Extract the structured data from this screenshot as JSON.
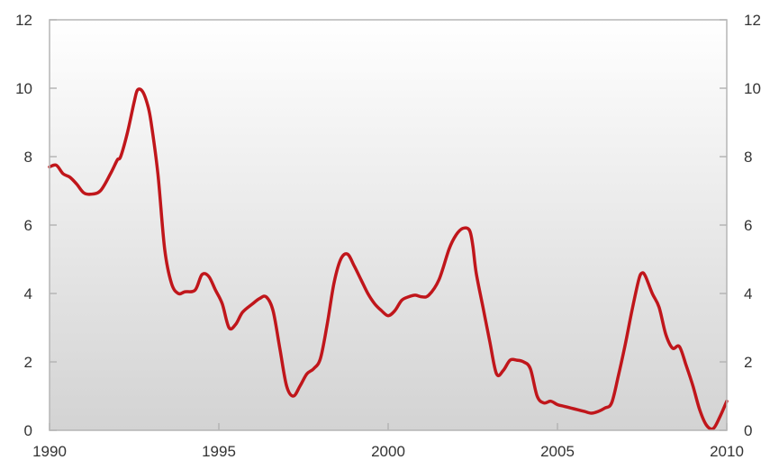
{
  "chart_data": {
    "type": "line",
    "xlim": [
      1990,
      2010
    ],
    "ylim": [
      0,
      12
    ],
    "x_ticks": [
      "1990",
      "1995",
      "2000",
      "2005",
      "2010"
    ],
    "y_ticks": [
      "0",
      "2",
      "4",
      "6",
      "8",
      "10",
      "12"
    ],
    "y_ticks_right": [
      "0",
      "2",
      "4",
      "6",
      "8",
      "10",
      "12"
    ],
    "grid": false,
    "legend": "none",
    "background": "light-grey-gradient",
    "colors": {
      "line": "#c0161b",
      "frame": "#b5b5b5",
      "text": "#333333",
      "bg_top": "#ffffff",
      "bg_bottom": "#d3d3d3"
    },
    "series": [
      {
        "x": [
          1990.0,
          1990.2,
          1990.4,
          1990.6,
          1990.8,
          1991.0,
          1991.2,
          1991.5,
          1991.8,
          1992.0,
          1992.1,
          1992.3,
          1992.5,
          1992.6,
          1992.75,
          1992.9,
          1993.0,
          1993.2,
          1993.4,
          1993.6,
          1993.8,
          1994.0,
          1994.3,
          1994.5,
          1994.7,
          1994.9,
          1995.1,
          1995.3,
          1995.5,
          1995.7,
          1996.0,
          1996.2,
          1996.4,
          1996.6,
          1996.8,
          1997.0,
          1997.2,
          1997.4,
          1997.6,
          1997.8,
          1998.0,
          1998.2,
          1998.4,
          1998.6,
          1998.8,
          1999.0,
          1999.2,
          1999.4,
          1999.6,
          1999.8,
          2000.0,
          2000.2,
          2000.4,
          2000.6,
          2000.8,
          2001.0,
          2001.2,
          2001.5,
          2001.8,
          2002.0,
          2002.2,
          2002.4,
          2002.5,
          2002.6,
          2002.8,
          2003.0,
          2003.2,
          2003.4,
          2003.6,
          2003.8,
          2004.0,
          2004.2,
          2004.4,
          2004.6,
          2004.8,
          2005.0,
          2005.2,
          2005.4,
          2005.6,
          2005.8,
          2006.0,
          2006.2,
          2006.4,
          2006.6,
          2006.8,
          2007.0,
          2007.2,
          2007.4,
          2007.5,
          2007.6,
          2007.8,
          2008.0,
          2008.2,
          2008.4,
          2008.6,
          2008.8,
          2009.0,
          2009.2,
          2009.4,
          2009.6,
          2009.8,
          2010.0
        ],
        "y": [
          7.7,
          7.75,
          7.5,
          7.4,
          7.2,
          6.95,
          6.9,
          7.0,
          7.5,
          7.9,
          8.0,
          8.7,
          9.6,
          9.95,
          9.9,
          9.5,
          9.0,
          7.5,
          5.3,
          4.3,
          4.0,
          4.05,
          4.1,
          4.55,
          4.5,
          4.1,
          3.7,
          3.0,
          3.1,
          3.45,
          3.7,
          3.85,
          3.9,
          3.5,
          2.4,
          1.3,
          1.0,
          1.3,
          1.65,
          1.8,
          2.1,
          3.1,
          4.3,
          5.0,
          5.15,
          4.8,
          4.4,
          4.0,
          3.7,
          3.5,
          3.35,
          3.5,
          3.8,
          3.9,
          3.95,
          3.9,
          3.95,
          4.4,
          5.3,
          5.7,
          5.9,
          5.85,
          5.4,
          4.6,
          3.6,
          2.6,
          1.65,
          1.75,
          2.05,
          2.05,
          2.0,
          1.8,
          1.0,
          0.8,
          0.85,
          0.75,
          0.7,
          0.65,
          0.6,
          0.55,
          0.5,
          0.55,
          0.65,
          0.8,
          1.6,
          2.5,
          3.5,
          4.4,
          4.6,
          4.5,
          4.0,
          3.6,
          2.8,
          2.4,
          2.45,
          1.9,
          1.3,
          0.6,
          0.15,
          0.05,
          0.4,
          0.85
        ]
      }
    ]
  }
}
